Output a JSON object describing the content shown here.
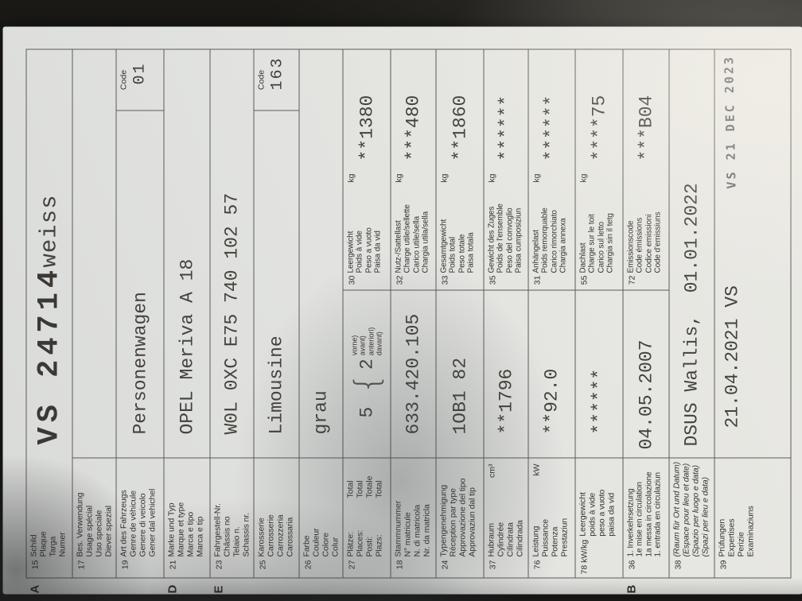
{
  "meta": {
    "description": "Photo of a Swiss vehicle registration certificate (Fahrzeugausweis) lying rotated 90 degrees on a dark leather surface"
  },
  "colors": {
    "paper": "#dfe1de",
    "background": "#1a1916",
    "table_line": "#5d5b55",
    "label_ink": "#34322e",
    "typewriter_ink": "#44423c",
    "stamp_ink": "#53555c"
  },
  "doc": {
    "code_label": "Code",
    "p15": {
      "letter": "A",
      "num": "15",
      "labels": [
        "Schild",
        "Plaque",
        "Targa",
        "Numer"
      ],
      "plate": "VS 24714",
      "plate_color": "weiss"
    },
    "p17": {
      "num": "17",
      "labels": [
        "Bes. Verwendung",
        "Usage spécial",
        "Uso speciale",
        "Diever spezial"
      ],
      "value": ""
    },
    "p19": {
      "num": "19",
      "labels": [
        "Art des Fahrzeugs",
        "Genre de véhicule",
        "Genere di veicolo",
        "Gener dal vehichel"
      ],
      "value": "Personenwagen",
      "code": "01"
    },
    "p21": {
      "letter": "D",
      "num": "21",
      "labels": [
        "Marke und Typ",
        "Marque et type",
        "Marca e tipo",
        "Marca e tip"
      ],
      "value": "OPEL Meriva A 18"
    },
    "p23": {
      "letter": "E",
      "num": "23",
      "labels": [
        "Fahrgestell-Nr.",
        "Châssis no",
        "Telaio n.",
        "Schassis nr."
      ],
      "value": "W0L 0XC E75 740 102 57"
    },
    "p25": {
      "num": "25",
      "labels": [
        "Karosserie",
        "Carrosserie",
        "Carrozzeria",
        "Carossaria"
      ],
      "value": "Limousine",
      "code": "163"
    },
    "p26": {
      "num": "26",
      "labels": [
        "Farbe",
        "Couleur",
        "Colore",
        "Colur"
      ],
      "value": "grau"
    },
    "p27": {
      "num": "27",
      "labels": [
        "Plätze:",
        "Places:",
        "Posti:",
        "Plazs:"
      ],
      "labels2": [
        "Total",
        "Total",
        "Totale",
        "Total"
      ],
      "value_total": "5",
      "value_front": "2",
      "front_labels": [
        "vorne)",
        "avant)",
        "anteriori)",
        "davant)"
      ],
      "right": {
        "num": "30",
        "labels": [
          "Leergewicht",
          "Poids à vide",
          "Peso a vuoto",
          "Paisa da vid"
        ],
        "unit": "kg",
        "value": "**1380"
      }
    },
    "p18": {
      "num": "18",
      "labels": [
        "Stammnummer",
        "N° matricule",
        "N. di matricola",
        "Nr. da matricla"
      ],
      "value": "633.420.105",
      "right": {
        "num": "32",
        "labels": [
          "Nutz-/Sattellast",
          "Charge utile/sellette",
          "Carico utile/sella",
          "Chargia utila/sella"
        ],
        "unit": "kg",
        "value": "***480"
      }
    },
    "p24": {
      "num": "24",
      "labels": [
        "Typengenehmigung",
        "Réception par type",
        "Approvazione del tipo",
        "Approvaziun dal tip"
      ],
      "value": "1OB1 82",
      "right": {
        "num": "33",
        "labels": [
          "Gesamtgewicht",
          "Poids total",
          "Peso totale",
          "Paisa totala"
        ],
        "unit": "kg",
        "value": "**1860"
      }
    },
    "p37": {
      "num": "37",
      "labels": [
        "Hubraum",
        "Cylindrée",
        "Cilindrata",
        "Cilindrada"
      ],
      "unit": "cm³",
      "value": "**1796",
      "right": {
        "num": "35",
        "labels": [
          "Gewicht des Zuges",
          "Poids de l'ensemble",
          "Peso del convoglio",
          "Paisa cumposiziun"
        ],
        "unit": "kg",
        "value": "******"
      }
    },
    "p76": {
      "num": "76",
      "labels": [
        "Leistung",
        "Puissance",
        "Potenza",
        "Prestaziun"
      ],
      "unit": "kW",
      "value": "**92.0",
      "right": {
        "num": "31",
        "labels": [
          "Anhängelast",
          "Poids remorquable",
          "Carico rimorchiato",
          "Chargia annexa"
        ],
        "unit": "kg",
        "value": "******"
      }
    },
    "p78": {
      "num": "78 kW/kg",
      "labels": [
        "Leergewicht",
        "poids à vide",
        "peso a vuoto",
        "paisa da vid"
      ],
      "value": "******",
      "right": {
        "num": "55",
        "labels": [
          "Dachlast",
          "Charge sur le toit",
          "Carico sul letto",
          "Chargia sin il tetg"
        ],
        "unit": "kg",
        "value": "****75"
      }
    },
    "p36": {
      "letter": "B",
      "num": "36",
      "labels": [
        "1. Inverkehrsetzung",
        "1e mise en circulation",
        "1a messa in circolazione",
        "1. entrada en circulaziun"
      ],
      "value": "04.05.2007",
      "right": {
        "num": "72",
        "labels": [
          "Emissionscode",
          "Code émissions",
          "Codice emissioni",
          "Code d'emissiuns"
        ],
        "value": "***B04"
      }
    },
    "p38": {
      "num": "38",
      "labels": [
        "(Raum für Ort und Datum)",
        "(Espace pour lieu et date)",
        "(Spazio per luogo e data)",
        "(Spazi per lieu e data)"
      ],
      "value": "DSUS Wallis,  01.01.2022"
    },
    "p39": {
      "num": "39",
      "labels": [
        "Prüfungen",
        "Expertises",
        "Perizie",
        "Examinaziuns"
      ],
      "value": "21.04.2021 VS",
      "stamp": "VS 21 DEC 2023 Ŧ"
    }
  }
}
